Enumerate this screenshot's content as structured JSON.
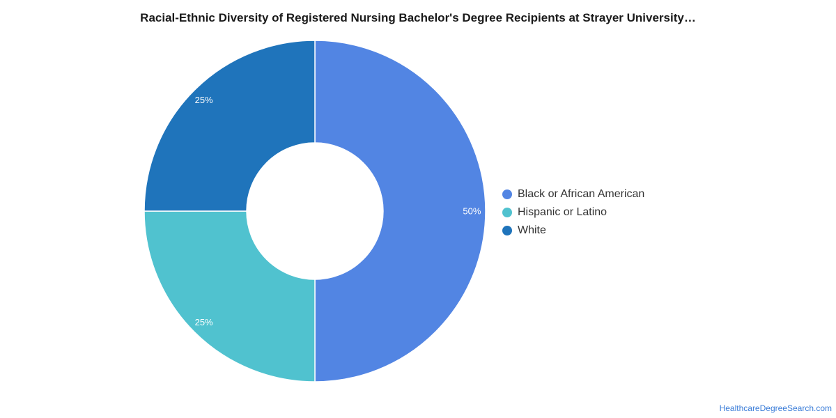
{
  "chart_data": {
    "type": "pie",
    "donut": true,
    "title": "Racial-Ethnic Diversity of Registered Nursing Bachelor's Degree Recipients at Strayer University…",
    "categories": [
      "Black or African American",
      "Hispanic or Latino",
      "White"
    ],
    "values": [
      50,
      25,
      25
    ],
    "value_labels": [
      "50%",
      "25%",
      "25%"
    ],
    "colors": [
      "#5285e3",
      "#50c2cf",
      "#1f74bb"
    ],
    "legend_placement": "right"
  },
  "footer": {
    "source": "HealthcareDegreeSearch.com"
  }
}
